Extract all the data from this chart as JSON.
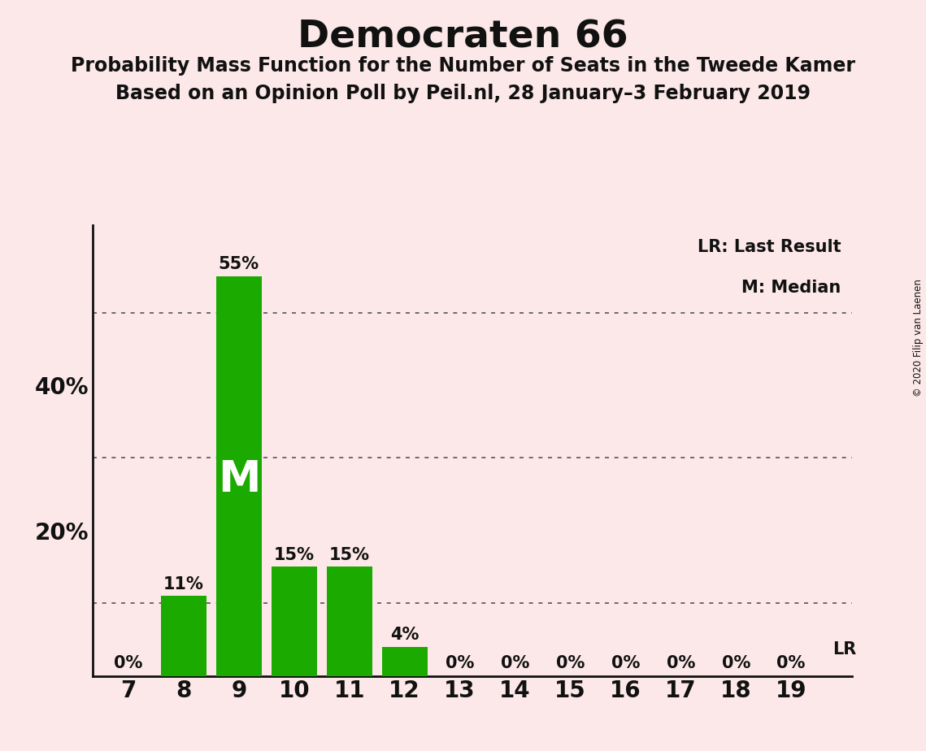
{
  "title": "Democraten 66",
  "subtitle1": "Probability Mass Function for the Number of Seats in the Tweede Kamer",
  "subtitle2": "Based on an Opinion Poll by Peil.nl, 28 January–3 February 2019",
  "copyright": "© 2020 Filip van Laenen",
  "seats": [
    7,
    8,
    9,
    10,
    11,
    12,
    13,
    14,
    15,
    16,
    17,
    18,
    19
  ],
  "probabilities": [
    0,
    11,
    55,
    15,
    15,
    4,
    0,
    0,
    0,
    0,
    0,
    0,
    0
  ],
  "bar_color": "#1aaa00",
  "background_color": "#fce8e8",
  "median_seat": 9,
  "lr_seat": 19,
  "dotted_gridlines": [
    10,
    30,
    50
  ],
  "yaxis_ticks": [
    20,
    40
  ],
  "legend_lr": "LR: Last Result",
  "legend_m": "M: Median",
  "title_fontsize": 34,
  "subtitle_fontsize": 17,
  "label_fontsize": 15,
  "tick_fontsize": 20,
  "median_label_fontsize": 38,
  "ylim_max": 62,
  "bar_width": 0.82
}
